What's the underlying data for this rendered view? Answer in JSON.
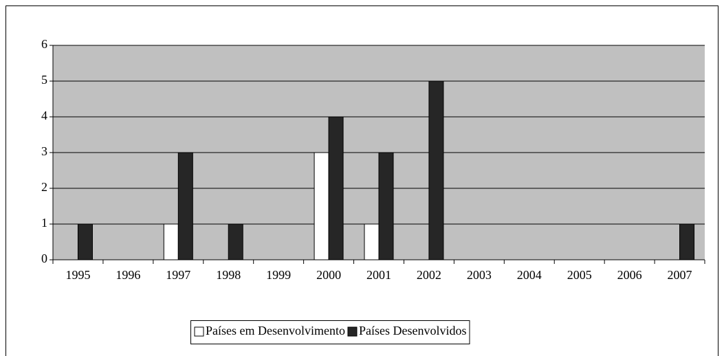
{
  "chart_data": {
    "type": "bar",
    "categories": [
      "1995",
      "1996",
      "1997",
      "1998",
      "1999",
      "2000",
      "2001",
      "2002",
      "2003",
      "2004",
      "2005",
      "2006",
      "2007"
    ],
    "series": [
      {
        "name": "Países em Desenvolvimento",
        "color": "#ffffff",
        "values": [
          0,
          0,
          1,
          0,
          0,
          3,
          1,
          0,
          0,
          0,
          0,
          0,
          0
        ]
      },
      {
        "name": "Países Desenvolvidos",
        "color": "#262626",
        "values": [
          1,
          0,
          3,
          1,
          0,
          4,
          3,
          5,
          0,
          0,
          0,
          0,
          1
        ]
      }
    ],
    "ylim": [
      0,
      6
    ],
    "yticks": [
      0,
      1,
      2,
      3,
      4,
      5,
      6
    ],
    "grid": true,
    "plot_background": "#c0c0c0",
    "legend": "bottom"
  }
}
